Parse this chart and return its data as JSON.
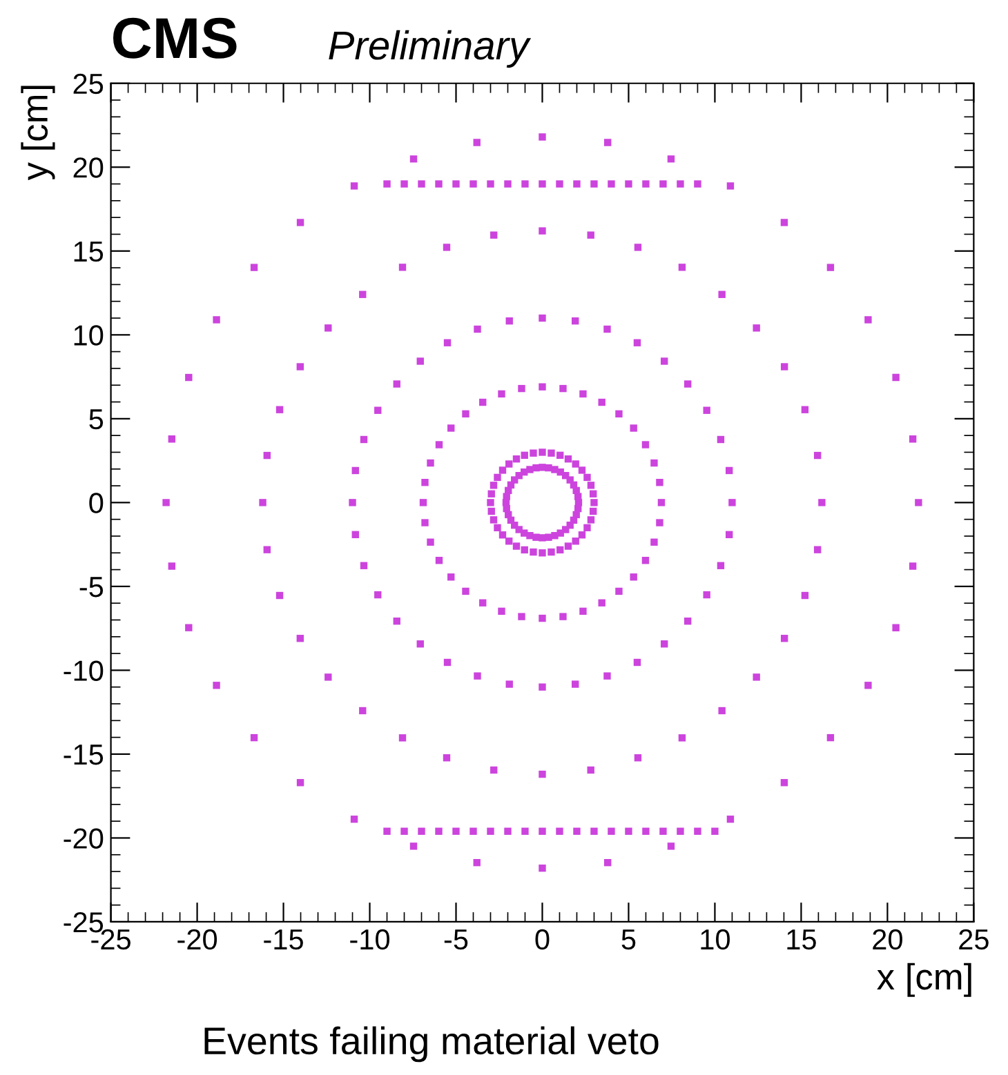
{
  "chart_data": {
    "type": "scatter",
    "title": "CMS",
    "subtitle": "Preliminary",
    "xlabel": "x [cm]",
    "ylabel": "y [cm]",
    "annotations": [
      "Events failing material veto"
    ],
    "xlim": [
      -25,
      25
    ],
    "ylim": [
      -25,
      25
    ],
    "xticks": [
      -25,
      -20,
      -15,
      -10,
      -5,
      0,
      5,
      10,
      15,
      20,
      25
    ],
    "yticks": [
      -25,
      -20,
      -15,
      -10,
      -5,
      0,
      5,
      10,
      15,
      20,
      25
    ],
    "grid": false,
    "marker": "square",
    "series": [
      {
        "color": "#cc44dd",
        "x": [
          21.8,
          21.47,
          20.49,
          18.88,
          16.7,
          14.02,
          10.9,
          7.46,
          3.79,
          0,
          -3.79,
          -7.46,
          -10.9,
          -14.02,
          -16.7,
          -18.88,
          -20.49,
          -21.47,
          -21.8,
          -21.47,
          -20.49,
          -18.88,
          -16.7,
          -14.02,
          -10.9,
          -7.46,
          -3.79,
          0,
          3.79,
          7.46,
          10.9,
          14.02,
          16.7,
          18.88,
          20.49,
          21.47
        ],
        "values": [
          0,
          3.79,
          7.46,
          10.9,
          14.02,
          16.7,
          18.88,
          20.49,
          21.47,
          21.8,
          21.47,
          20.49,
          18.88,
          16.7,
          14.02,
          10.9,
          7.46,
          3.79,
          0,
          -3.79,
          -7.46,
          -10.9,
          -14.02,
          -16.7,
          -18.88,
          -20.49,
          -21.47,
          -21.8,
          -21.47,
          -20.49,
          -18.88,
          -16.7,
          -14.02,
          -10.9,
          -7.46,
          -3.79
        ]
      },
      {
        "color": "#cc44dd",
        "x": [
          16.2,
          15.95,
          15.22,
          14.03,
          12.41,
          10.41,
          8.1,
          5.54,
          2.81,
          0,
          -2.81,
          -5.54,
          -8.1,
          -10.41,
          -12.41,
          -14.03,
          -15.22,
          -15.95,
          -16.2,
          -15.95,
          -15.22,
          -14.03,
          -12.41,
          -10.41,
          -8.1,
          -5.54,
          -2.81,
          0,
          2.81,
          5.54,
          8.1,
          10.41,
          12.41,
          14.03,
          15.22,
          15.95
        ],
        "values": [
          0,
          2.81,
          5.54,
          8.1,
          10.41,
          12.41,
          14.03,
          15.22,
          15.95,
          16.2,
          15.95,
          15.22,
          14.03,
          12.41,
          10.41,
          8.1,
          5.54,
          2.81,
          0,
          -2.81,
          -5.54,
          -8.1,
          -10.41,
          -12.41,
          -14.03,
          -15.22,
          -15.95,
          -16.2,
          -15.95,
          -15.22,
          -14.03,
          -12.41,
          -10.41,
          -8.1,
          -5.54,
          -2.81
        ]
      },
      {
        "color": "#cc44dd",
        "x": [
          11,
          10.83,
          10.34,
          9.53,
          8.43,
          7.07,
          5.5,
          3.76,
          1.91,
          0,
          -1.91,
          -3.76,
          -5.5,
          -7.07,
          -8.43,
          -9.53,
          -10.34,
          -10.83,
          -11,
          -10.83,
          -10.34,
          -9.53,
          -8.43,
          -7.07,
          -5.5,
          -3.76,
          -1.91,
          0,
          1.91,
          3.76,
          5.5,
          7.07,
          8.43,
          9.53,
          10.34,
          10.83
        ],
        "values": [
          0,
          1.91,
          3.76,
          5.5,
          7.07,
          8.43,
          9.53,
          10.34,
          10.83,
          11,
          10.83,
          10.34,
          9.53,
          8.43,
          7.07,
          5.5,
          3.76,
          1.91,
          0,
          -1.91,
          -3.76,
          -5.5,
          -7.07,
          -8.43,
          -9.53,
          -10.34,
          -10.83,
          -11,
          -10.83,
          -10.34,
          -9.53,
          -8.43,
          -7.07,
          -5.5,
          -3.76,
          -1.91
        ]
      },
      {
        "color": "#cc44dd",
        "x": [
          6.9,
          6.8,
          6.48,
          5.98,
          5.29,
          4.44,
          3.45,
          2.36,
          1.2,
          0,
          -1.2,
          -2.36,
          -3.45,
          -4.44,
          -5.29,
          -5.98,
          -6.48,
          -6.8,
          -6.9,
          -6.8,
          -6.48,
          -5.98,
          -5.29,
          -4.44,
          -3.45,
          -2.36,
          -1.2,
          0,
          1.2,
          2.36,
          3.45,
          4.44,
          5.29,
          5.98,
          6.48,
          6.8
        ],
        "values": [
          0,
          1.2,
          2.36,
          3.45,
          4.44,
          5.29,
          5.98,
          6.48,
          6.8,
          6.9,
          6.8,
          6.48,
          5.98,
          5.29,
          4.44,
          3.45,
          2.36,
          1.2,
          0,
          -1.2,
          -2.36,
          -3.45,
          -4.44,
          -5.29,
          -5.98,
          -6.48,
          -6.8,
          -6.9,
          -6.8,
          -6.48,
          -5.98,
          -5.29,
          -4.44,
          -3.45,
          -2.36,
          -1.2
        ]
      },
      {
        "color": "#cc44dd",
        "x": [
          3,
          2.95,
          2.82,
          2.6,
          2.3,
          1.93,
          1.5,
          1.03,
          0.52,
          0,
          -0.52,
          -1.03,
          -1.5,
          -1.93,
          -2.3,
          -2.6,
          -2.82,
          -2.95,
          -3,
          -2.95,
          -2.82,
          -2.6,
          -2.3,
          -1.93,
          -1.5,
          -1.03,
          -0.52,
          0,
          0.52,
          1.03,
          1.5,
          1.93,
          2.3,
          2.6,
          2.82,
          2.95
        ],
        "values": [
          0,
          0.52,
          1.03,
          1.5,
          1.93,
          2.3,
          2.6,
          2.82,
          2.95,
          3,
          2.95,
          2.82,
          2.6,
          2.3,
          1.93,
          1.5,
          1.03,
          0.52,
          0,
          -0.52,
          -1.03,
          -1.5,
          -1.93,
          -2.3,
          -2.6,
          -2.82,
          -2.95,
          -3,
          -2.95,
          -2.82,
          -2.6,
          -2.3,
          -1.93,
          -1.5,
          -1.03,
          -0.52
        ]
      },
      {
        "color": "#cc44dd",
        "x": [
          2.1,
          2.07,
          1.97,
          1.82,
          1.61,
          1.35,
          1.05,
          0.72,
          0.36,
          0,
          -0.36,
          -0.72,
          -1.05,
          -1.35,
          -1.61,
          -1.82,
          -1.97,
          -2.07,
          -2.1,
          -2.07,
          -1.97,
          -1.82,
          -1.61,
          -1.35,
          -1.05,
          -0.72,
          -0.36,
          0,
          0.36,
          0.72,
          1.05,
          1.35,
          1.61,
          1.82,
          1.97,
          2.07
        ],
        "values": [
          0,
          0.36,
          0.72,
          1.05,
          1.35,
          1.61,
          1.82,
          1.97,
          2.07,
          2.1,
          2.07,
          1.97,
          1.82,
          1.61,
          1.35,
          1.05,
          0.72,
          0.36,
          0,
          -0.36,
          -0.72,
          -1.05,
          -1.35,
          -1.61,
          -1.82,
          -1.97,
          -2.07,
          -2.1,
          -2.07,
          -1.97,
          -1.82,
          -1.61,
          -1.35,
          -1.05,
          -0.72,
          -0.36
        ]
      },
      {
        "color": "#cc44dd",
        "x": [
          -9,
          -8,
          -7,
          -6,
          -5,
          -4,
          -3,
          -2,
          -1,
          0,
          1,
          2,
          3,
          4,
          5,
          6,
          7,
          8,
          9
        ],
        "values": [
          19,
          19,
          19,
          19,
          19,
          19,
          19,
          19,
          19,
          19,
          19,
          19,
          19,
          19,
          19,
          19,
          19,
          19,
          19
        ]
      },
      {
        "color": "#cc44dd",
        "x": [
          -9,
          -8,
          -7,
          -6,
          -5,
          -4,
          -3,
          -2,
          -1,
          0,
          1,
          2,
          3,
          4,
          5,
          6,
          7,
          8,
          9,
          10
        ],
        "values": [
          -19.6,
          -19.6,
          -19.6,
          -19.6,
          -19.6,
          -19.6,
          -19.6,
          -19.6,
          -19.6,
          -19.6,
          -19.6,
          -19.6,
          -19.6,
          -19.6,
          -19.6,
          -19.6,
          -19.6,
          -19.6,
          -19.6,
          -19.6
        ]
      }
    ]
  }
}
